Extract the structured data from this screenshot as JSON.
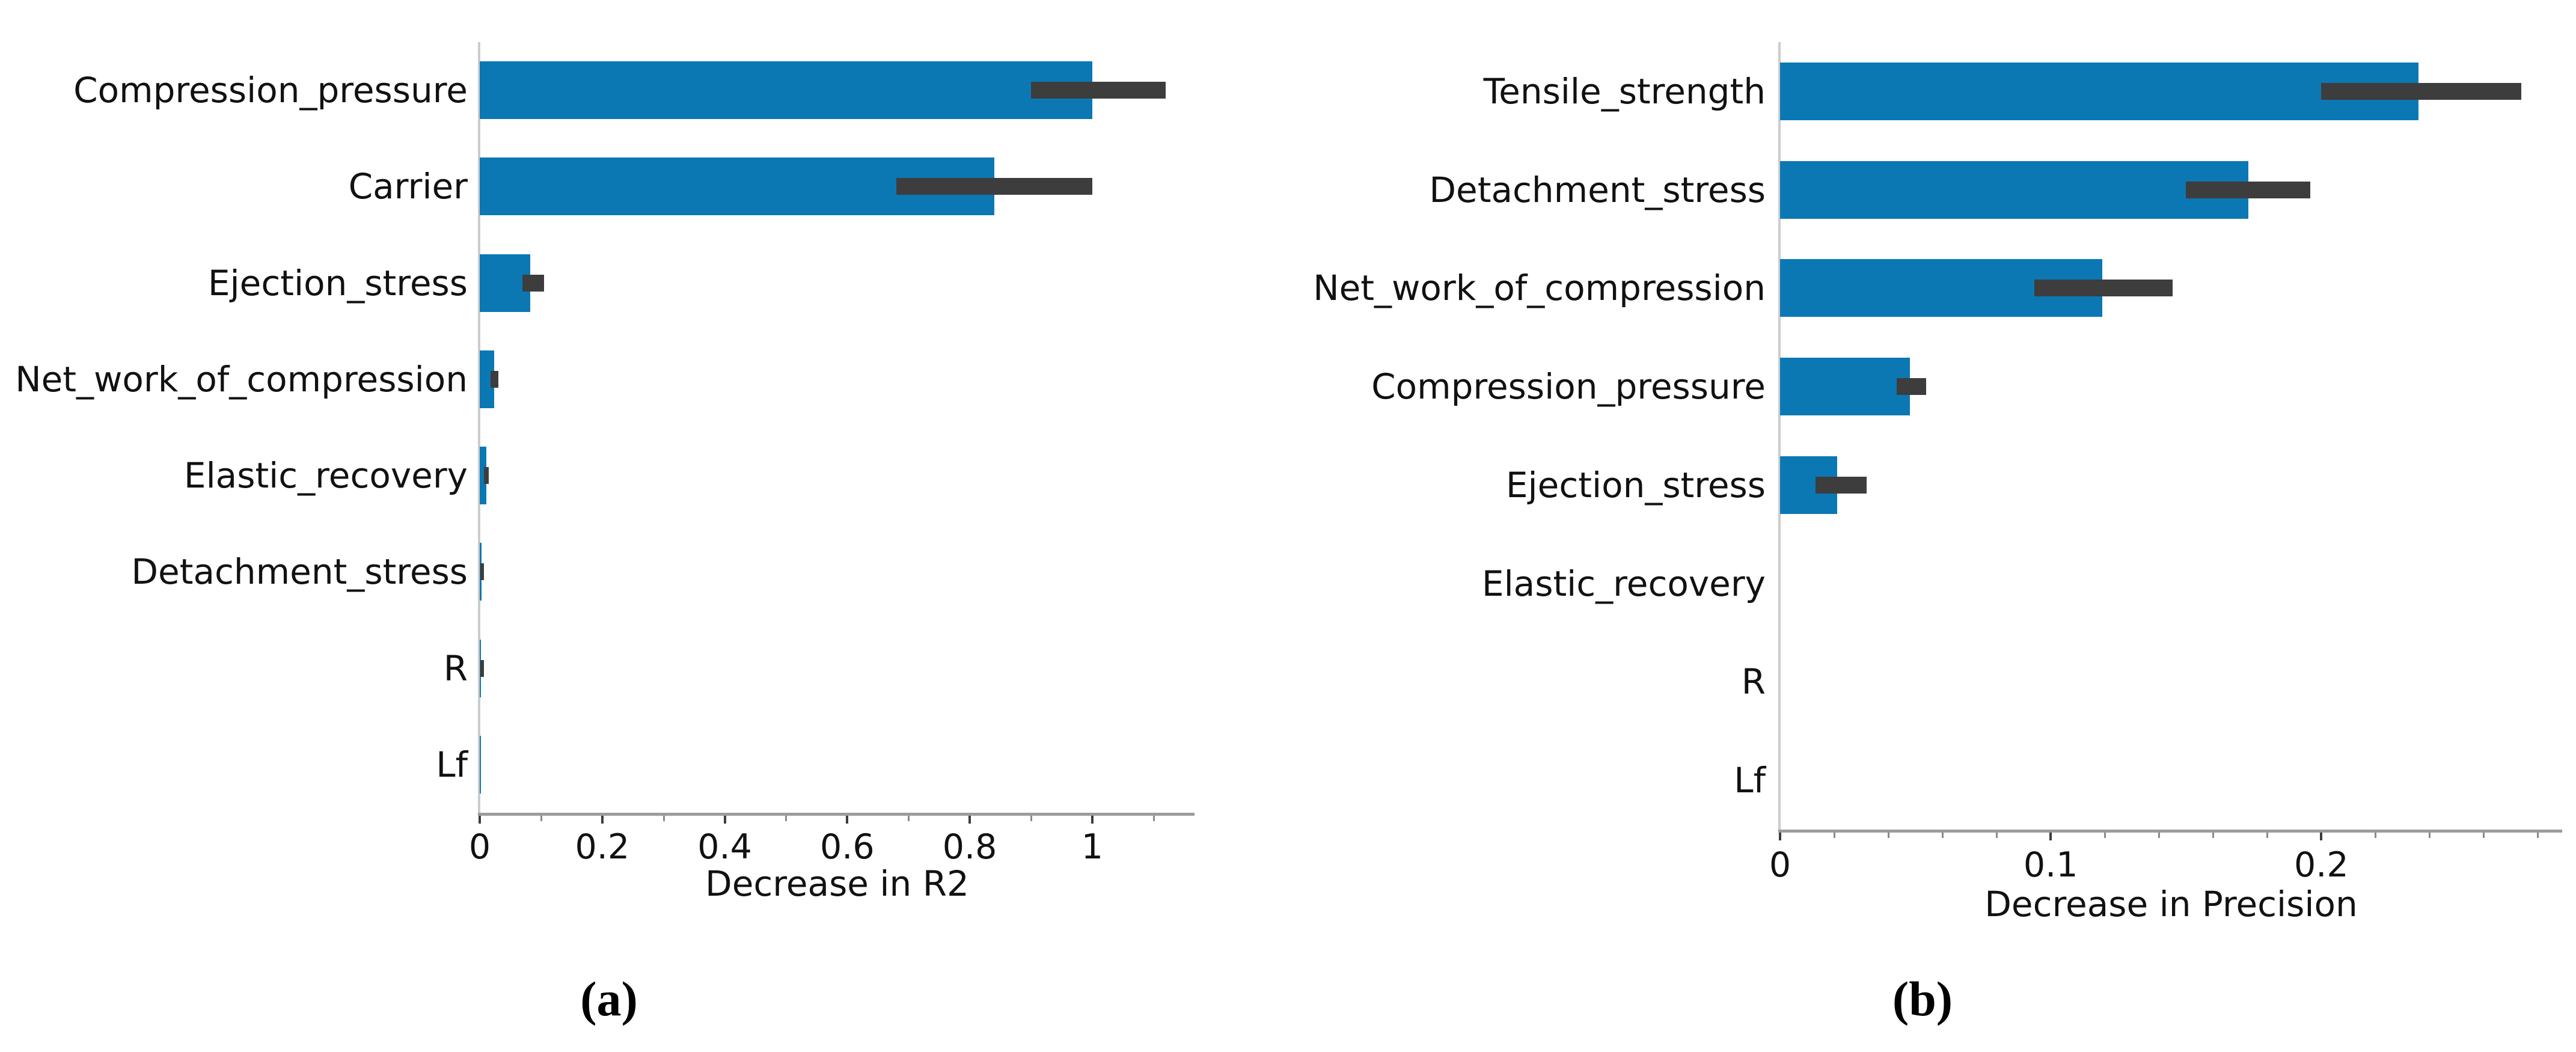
{
  "figure": {
    "background": "#ffffff",
    "bar_color": "#0b78b4",
    "error_bar_color": "#3d3d3d",
    "axis_line_color": "#9c9c9c",
    "spine_color": "#cccccc",
    "major_tick_color": "#3c3c3c",
    "minor_tick_color": "#8a8a8a",
    "text_color": "#111111"
  },
  "chart_data": [
    {
      "type": "bar",
      "orientation": "horizontal",
      "panel_label": "(a)",
      "title": "",
      "xlabel": "Decrease in R2",
      "ylabel": "",
      "xlim": [
        0,
        1.167
      ],
      "grid": false,
      "legend": null,
      "major_ticks": [
        {
          "v": 0,
          "label": "0"
        },
        {
          "v": 0.2,
          "label": "0.2"
        },
        {
          "v": 0.4,
          "label": "0.4"
        },
        {
          "v": 0.6,
          "label": "0.6"
        },
        {
          "v": 0.8,
          "label": "0.8"
        },
        {
          "v": 1.0,
          "label": "1"
        }
      ],
      "minor_ticks": [
        0.1,
        0.3,
        0.5,
        0.7,
        0.9,
        1.1
      ],
      "categories": [
        "Compression_pressure",
        "Carrier",
        "Ejection_stress",
        "Net_work_of_compression",
        "Elastic_recovery",
        "Detachment_stress",
        "R",
        "Lf"
      ],
      "values": [
        1.0,
        0.84,
        0.082,
        0.024,
        0.011,
        0.003,
        0.002,
        0.001
      ],
      "error_ranges": [
        [
          0.9,
          1.12
        ],
        [
          0.68,
          1.0
        ],
        [
          0.07,
          0.105
        ],
        [
          0.018,
          0.03
        ],
        [
          0.007,
          0.015
        ],
        [
          0.001,
          0.006
        ],
        [
          0.0005,
          0.0045
        ],
        null
      ]
    },
    {
      "type": "bar",
      "orientation": "horizontal",
      "panel_label": "(b)",
      "title": "",
      "xlabel": "Decrease in Precision",
      "ylabel": "",
      "xlim": [
        0,
        0.289
      ],
      "grid": false,
      "legend": null,
      "major_ticks": [
        {
          "v": 0,
          "label": "0"
        },
        {
          "v": 0.1,
          "label": "0.1"
        },
        {
          "v": 0.2,
          "label": "0.2"
        }
      ],
      "minor_ticks": [
        0.02,
        0.04,
        0.06,
        0.08,
        0.12,
        0.14,
        0.16,
        0.18,
        0.22,
        0.24,
        0.26,
        0.28
      ],
      "categories": [
        "Tensile_strength",
        "Detachment_stress",
        "Net_work_of_compression",
        "Compression_pressure",
        "Ejection_stress",
        "Elastic_recovery",
        "R",
        "Lf"
      ],
      "values": [
        0.236,
        0.173,
        0.119,
        0.048,
        0.021,
        0,
        0,
        0
      ],
      "error_ranges": [
        [
          0.2,
          0.274
        ],
        [
          0.15,
          0.196
        ],
        [
          0.094,
          0.145
        ],
        [
          0.043,
          0.054
        ],
        [
          0.013,
          0.032
        ],
        null,
        null,
        null
      ]
    }
  ]
}
